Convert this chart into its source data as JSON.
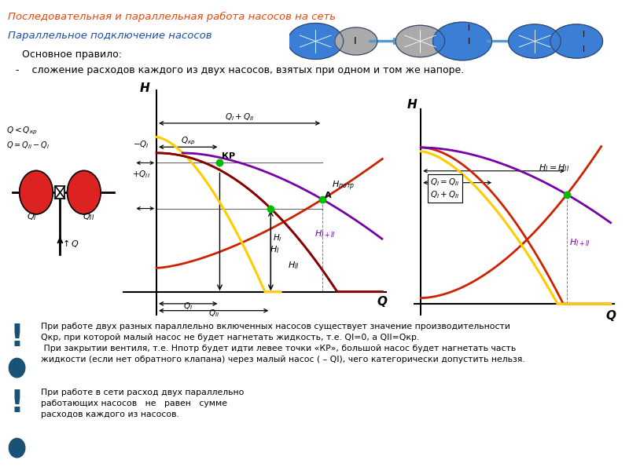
{
  "title": "Последовательная и параллельная работа насосов на сеть",
  "subtitle": "Параллельное подключение насосов",
  "rule_title": "  Основное правило:",
  "rule_text": "-    сложение расходов каждого из двух насосов, взятых при одном и том же напоре.",
  "bg_color": "#ffffff",
  "title_color": "#e8450a",
  "subtitle_color": "#1a4faa",
  "text_color": "#000000",
  "note1_line1": "При работе двух разных параллельно включенных насосов существует значение производительности",
  "note1_line2": "Qкр, при которой малый насос не будет нагнетать жидкость, т.е. QI=0, а QII=Qкр.",
  "note1_line3": " При закрытии вентиля, т.е. Hпотр будет идти левее точки «КР», большой насос будет нагнетать часть",
  "note1_line4": "жидкости (если нет обратного клапана) через малый насос ( – QI), чего категорически допустить нельзя.",
  "note2_text": "При работе в сети расход двух параллельно\nработающих насосов   не   равен   сумме\nрасходов каждого из насосов.",
  "excl_color": "#1a5276",
  "dot_color": "#1a5276"
}
